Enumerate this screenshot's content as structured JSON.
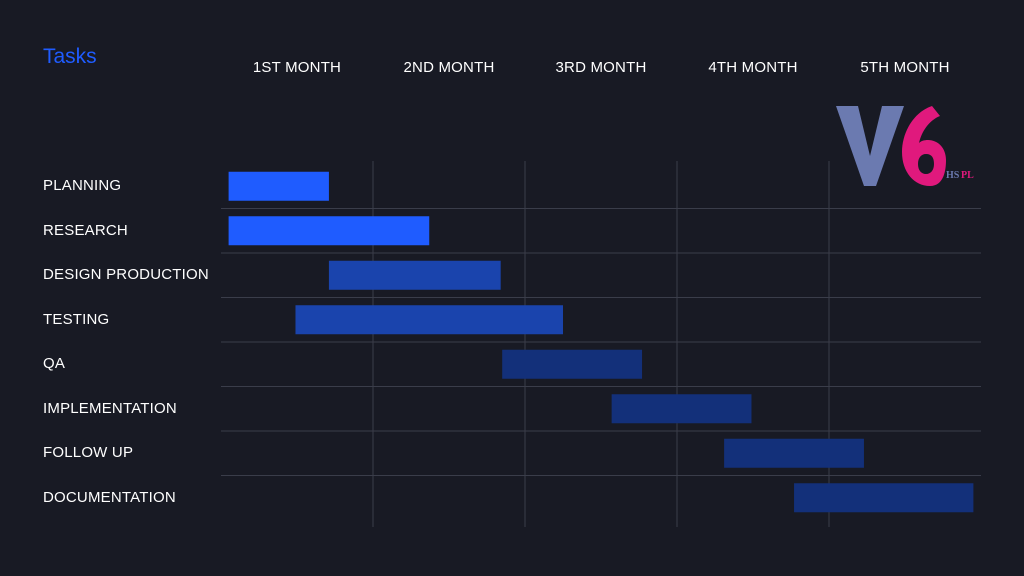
{
  "title": "Tasks",
  "logo_text": "V6 HSPL",
  "colors": {
    "background": "#181a24",
    "title": "#1f5cff",
    "grid": "#3a3d4a",
    "bar_light": "#1f5cff",
    "bar_mid": "#1a44ad",
    "bar_dark": "#13307a",
    "logo_v": "#6b7ab0",
    "logo_6": "#e0197d"
  },
  "chart_data": {
    "type": "bar",
    "orientation": "horizontal-gantt",
    "title": "Tasks",
    "x_unit": "month",
    "x_range": [
      0,
      5
    ],
    "months": [
      "1ST MONTH",
      "2ND MONTH",
      "3RD MONTH",
      "4TH MONTH",
      "5TH MONTH"
    ],
    "tasks": [
      {
        "name": "PLANNING",
        "start": 0.05,
        "end": 0.71,
        "shade": "bar_light"
      },
      {
        "name": "RESEARCH",
        "start": 0.05,
        "end": 1.37,
        "shade": "bar_light"
      },
      {
        "name": "DESIGN PRODUCTION",
        "start": 0.71,
        "end": 1.84,
        "shade": "bar_mid"
      },
      {
        "name": "TESTING",
        "start": 0.49,
        "end": 2.25,
        "shade": "bar_mid"
      },
      {
        "name": "QA",
        "start": 1.85,
        "end": 2.77,
        "shade": "bar_dark"
      },
      {
        "name": "IMPLEMENTATION",
        "start": 2.57,
        "end": 3.49,
        "shade": "bar_dark"
      },
      {
        "name": "FOLLOW UP",
        "start": 3.31,
        "end": 4.23,
        "shade": "bar_dark"
      },
      {
        "name": "DOCUMENTATION",
        "start": 3.77,
        "end": 4.95,
        "shade": "bar_dark"
      }
    ],
    "grid": true
  }
}
